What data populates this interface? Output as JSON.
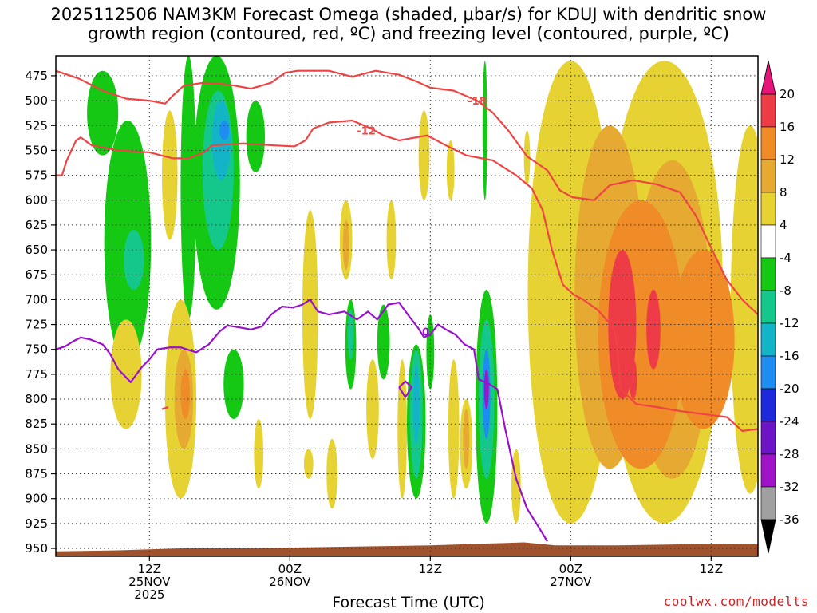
{
  "title_line1": "2025112506 NAM3KM Forecast Omega (shaded, μbar/s) for KDUJ with dendritic snow",
  "title_line2": "growth region (contoured, red, ºC) and freezing level (contoured, purple, ºC)",
  "xlabel": "Forecast Time (UTC)",
  "credit": "coolwx.com/modelts",
  "chart_data": {
    "type": "heatmap",
    "title": "2025112506 NAM3KM Forecast Omega (shaded, μbar/s) for KDUJ with dendritic snow growth region (contoured, red, ºC) and freezing level (contoured, purple, ºC)",
    "xlabel": "Forecast Time (UTC)",
    "ylabel": "",
    "x_range_hours": [
      0,
      45
    ],
    "y_range_hpa": [
      455,
      958
    ],
    "y_ticks": [
      475,
      500,
      525,
      550,
      575,
      600,
      625,
      650,
      675,
      700,
      725,
      750,
      775,
      800,
      825,
      850,
      875,
      900,
      925,
      950
    ],
    "x_ticks": [
      {
        "hour": 6,
        "line1": "12Z",
        "line2": "25NOV",
        "line3": "2025"
      },
      {
        "hour": 15,
        "line1": "00Z",
        "line2": "26NOV",
        "line3": ""
      },
      {
        "hour": 24,
        "line1": "12Z",
        "line2": "",
        "line3": ""
      },
      {
        "hour": 33,
        "line1": "00Z",
        "line2": "27NOV",
        "line3": ""
      },
      {
        "hour": 42,
        "line1": "12Z",
        "line2": "",
        "line3": ""
      }
    ],
    "colorbar": {
      "labels": [
        "20",
        "16",
        "12",
        "8",
        "4",
        "-4",
        "-8",
        "-12",
        "-16",
        "-20",
        "-24",
        "-28",
        "-32",
        "-36"
      ],
      "bins": [
        {
          "range": [
            16,
            20
          ],
          "color": "#ee3c46"
        },
        {
          "range": [
            12,
            16
          ],
          "color": "#f08c28"
        },
        {
          "range": [
            8,
            12
          ],
          "color": "#e6aa32"
        },
        {
          "range": [
            4,
            8
          ],
          "color": "#e6d232"
        },
        {
          "range": [
            -4,
            4
          ],
          "color": "#ffffff"
        },
        {
          "range": [
            -8,
            -4
          ],
          "color": "#14c814"
        },
        {
          "range": [
            -12,
            -8
          ],
          "color": "#14c88c"
        },
        {
          "range": [
            -16,
            -12
          ],
          "color": "#14b4c8"
        },
        {
          "range": [
            -20,
            -16
          ],
          "color": "#1e8cf0"
        },
        {
          "range": [
            -24,
            -20
          ],
          "color": "#1e28dc"
        },
        {
          "range": [
            -28,
            -24
          ],
          "color": "#6e14c8"
        },
        {
          "range": [
            -32,
            -28
          ],
          "color": "#a014c8"
        },
        {
          "range": [
            -36,
            -32
          ],
          "color": "#a0a0a0"
        }
      ],
      "top_overflow_color": "#e6147a",
      "bottom_overflow_color": "#000000"
    },
    "terrain_color": "#a0522d",
    "dgz_contour_color": "#ee4444",
    "freezing_contour_color": "#9911cc",
    "omega_regions": [
      {
        "value": -6,
        "hour": 3.0,
        "p_top": 470,
        "p_bot": 555,
        "w": 2.0
      },
      {
        "value": -6,
        "hour": 4.6,
        "p_top": 520,
        "p_bot": 765,
        "w": 3.0
      },
      {
        "value": -10,
        "hour": 5.0,
        "p_top": 630,
        "p_bot": 690,
        "w": 1.3
      },
      {
        "value": -6,
        "hour": 10.3,
        "p_top": 455,
        "p_bot": 710,
        "w": 3.0
      },
      {
        "value": -10,
        "hour": 10.4,
        "p_top": 490,
        "p_bot": 650,
        "w": 2.0
      },
      {
        "value": -14,
        "hour": 10.6,
        "p_top": 500,
        "p_bot": 580,
        "w": 1.2
      },
      {
        "value": -18,
        "hour": 10.8,
        "p_top": 520,
        "p_bot": 540,
        "w": 0.6
      },
      {
        "value": -6,
        "hour": 8.5,
        "p_top": 455,
        "p_bot": 720,
        "w": 1.0
      },
      {
        "value": -6,
        "hour": 12.8,
        "p_top": 500,
        "p_bot": 572,
        "w": 1.2
      },
      {
        "value": -6,
        "hour": 11.4,
        "p_top": 750,
        "p_bot": 820,
        "w": 1.3
      },
      {
        "value": -6,
        "hour": 18.9,
        "p_top": 700,
        "p_bot": 790,
        "w": 0.7
      },
      {
        "value": -10,
        "hour": 18.9,
        "p_top": 710,
        "p_bot": 760,
        "w": 0.4
      },
      {
        "value": -6,
        "hour": 21.0,
        "p_top": 705,
        "p_bot": 780,
        "w": 0.8
      },
      {
        "value": -6,
        "hour": 23.1,
        "p_top": 745,
        "p_bot": 900,
        "w": 1.2
      },
      {
        "value": -10,
        "hour": 23.1,
        "p_top": 750,
        "p_bot": 880,
        "w": 0.8
      },
      {
        "value": -16,
        "hour": 23.1,
        "p_top": 765,
        "p_bot": 845,
        "w": 0.4
      },
      {
        "value": -6,
        "hour": 24.0,
        "p_top": 715,
        "p_bot": 790,
        "w": 0.5
      },
      {
        "value": -6,
        "hour": 27.5,
        "p_top": 460,
        "p_bot": 600,
        "w": 0.3
      },
      {
        "value": -6,
        "hour": 27.6,
        "p_top": 690,
        "p_bot": 925,
        "w": 1.4
      },
      {
        "value": -10,
        "hour": 27.6,
        "p_top": 720,
        "p_bot": 880,
        "w": 1.0
      },
      {
        "value": -18,
        "hour": 27.6,
        "p_top": 750,
        "p_bot": 840,
        "w": 0.5
      },
      {
        "value": -30,
        "hour": 27.6,
        "p_top": 770,
        "p_bot": 810,
        "w": 0.2
      },
      {
        "value": 6,
        "hour": 33.0,
        "p_top": 460,
        "p_bot": 925,
        "w": 5.5
      },
      {
        "value": 6,
        "hour": 39.0,
        "p_top": 460,
        "p_bot": 925,
        "w": 7.5
      },
      {
        "value": 6,
        "hour": 44.5,
        "p_top": 525,
        "p_bot": 895,
        "w": 2.5
      },
      {
        "value": 10,
        "hour": 35.5,
        "p_top": 525,
        "p_bot": 870,
        "w": 4.5
      },
      {
        "value": 10,
        "hour": 39.5,
        "p_top": 560,
        "p_bot": 880,
        "w": 5.0
      },
      {
        "value": 14,
        "hour": 37.5,
        "p_top": 600,
        "p_bot": 870,
        "w": 5.5
      },
      {
        "value": 14,
        "hour": 41.5,
        "p_top": 650,
        "p_bot": 830,
        "w": 4.0
      },
      {
        "value": 18,
        "hour": 36.3,
        "p_top": 650,
        "p_bot": 800,
        "w": 1.8
      },
      {
        "value": 18,
        "hour": 38.3,
        "p_top": 690,
        "p_bot": 770,
        "w": 0.9
      },
      {
        "value": 18,
        "hour": 37.0,
        "p_top": 760,
        "p_bot": 800,
        "w": 0.5
      },
      {
        "value": 6,
        "hour": 4.5,
        "p_top": 720,
        "p_bot": 830,
        "w": 2.0
      },
      {
        "value": 6,
        "hour": 7.3,
        "p_top": 510,
        "p_bot": 640,
        "w": 1.0
      },
      {
        "value": 6,
        "hour": 8.0,
        "p_top": 700,
        "p_bot": 900,
        "w": 2.0
      },
      {
        "value": 10,
        "hour": 8.2,
        "p_top": 750,
        "p_bot": 850,
        "w": 1.2
      },
      {
        "value": 14,
        "hour": 8.3,
        "p_top": 770,
        "p_bot": 820,
        "w": 0.6
      },
      {
        "value": 6,
        "hour": 13.0,
        "p_top": 820,
        "p_bot": 890,
        "w": 0.6
      },
      {
        "value": 6,
        "hour": 16.3,
        "p_top": 610,
        "p_bot": 820,
        "w": 1.0
      },
      {
        "value": 6,
        "hour": 18.6,
        "p_top": 600,
        "p_bot": 680,
        "w": 0.8
      },
      {
        "value": 10,
        "hour": 18.6,
        "p_top": 620,
        "p_bot": 670,
        "w": 0.4
      },
      {
        "value": 6,
        "hour": 16.2,
        "p_top": 850,
        "p_bot": 880,
        "w": 0.6
      },
      {
        "value": 6,
        "hour": 17.7,
        "p_top": 840,
        "p_bot": 910,
        "w": 0.7
      },
      {
        "value": 6,
        "hour": 20.3,
        "p_top": 760,
        "p_bot": 860,
        "w": 0.8
      },
      {
        "value": 6,
        "hour": 21.5,
        "p_top": 600,
        "p_bot": 680,
        "w": 0.6
      },
      {
        "value": 6,
        "hour": 23.6,
        "p_top": 510,
        "p_bot": 600,
        "w": 0.7
      },
      {
        "value": 6,
        "hour": 22.2,
        "p_top": 760,
        "p_bot": 900,
        "w": 0.6
      },
      {
        "value": 6,
        "hour": 25.3,
        "p_top": 540,
        "p_bot": 600,
        "w": 0.5
      },
      {
        "value": 6,
        "hour": 25.5,
        "p_top": 760,
        "p_bot": 900,
        "w": 0.7
      },
      {
        "value": 6,
        "hour": 26.3,
        "p_top": 800,
        "p_bot": 890,
        "w": 0.8
      },
      {
        "value": 10,
        "hour": 26.3,
        "p_top": 810,
        "p_bot": 870,
        "w": 0.4
      },
      {
        "value": 6,
        "hour": 29.5,
        "p_top": 850,
        "p_bot": 925,
        "w": 0.6
      },
      {
        "value": 6,
        "hour": 30.2,
        "p_top": 530,
        "p_bot": 585,
        "w": 0.4
      }
    ],
    "contours": [
      {
        "label": "-18",
        "kind": "dgz",
        "points": [
          [
            0,
            470
          ],
          [
            1.5,
            478
          ],
          [
            3,
            490
          ],
          [
            4.5,
            498
          ],
          [
            6,
            500
          ],
          [
            7,
            503
          ],
          [
            7.5,
            495
          ],
          [
            8.2,
            485
          ],
          [
            9.5,
            482
          ],
          [
            10.5,
            483
          ],
          [
            11.5,
            485
          ],
          [
            12.5,
            488
          ],
          [
            13.8,
            482
          ],
          [
            14.7,
            472
          ],
          [
            15.5,
            470
          ],
          [
            17.5,
            470
          ],
          [
            19,
            476
          ],
          [
            20.5,
            470
          ],
          [
            22,
            474
          ],
          [
            23,
            480
          ],
          [
            24,
            487
          ],
          [
            25.5,
            490
          ],
          [
            27,
            500
          ],
          [
            28,
            512
          ],
          [
            29,
            530
          ],
          [
            30.2,
            556
          ],
          [
            31.5,
            570
          ],
          [
            32.3,
            590
          ],
          [
            33.1,
            597
          ],
          [
            34.5,
            600
          ],
          [
            35.5,
            585
          ],
          [
            37,
            580
          ],
          [
            38.5,
            584
          ],
          [
            40,
            592
          ],
          [
            41,
            615
          ],
          [
            42,
            648
          ],
          [
            43,
            680
          ],
          [
            44,
            700
          ],
          [
            45,
            715
          ]
        ],
        "label_at": [
          27.0,
          500
        ]
      },
      {
        "label": "-12",
        "kind": "dgz",
        "points": [
          [
            0,
            575
          ],
          [
            0.4,
            575
          ],
          [
            0.7,
            560
          ],
          [
            1.3,
            540
          ],
          [
            1.6,
            537
          ],
          [
            2.3,
            545
          ],
          [
            4,
            550
          ],
          [
            6,
            552
          ],
          [
            7.5,
            558
          ],
          [
            8.5,
            558
          ],
          [
            9.5,
            552
          ],
          [
            10,
            545
          ],
          [
            12,
            543
          ],
          [
            14,
            545
          ],
          [
            15.3,
            546
          ],
          [
            16,
            540
          ],
          [
            16.5,
            528
          ],
          [
            17.5,
            522
          ],
          [
            19,
            520
          ],
          [
            20.2,
            528
          ],
          [
            21,
            535
          ],
          [
            22,
            540
          ],
          [
            23.8,
            535
          ],
          [
            25,
            545
          ],
          [
            26.3,
            555
          ],
          [
            28,
            560
          ],
          [
            29.5,
            575
          ],
          [
            30.5,
            588
          ],
          [
            31.2,
            610
          ],
          [
            31.8,
            650
          ],
          [
            32.5,
            685
          ],
          [
            33.2,
            695
          ],
          [
            33.8,
            700
          ],
          [
            34.7,
            710
          ],
          [
            35,
            715
          ],
          [
            35.8,
            730
          ],
          [
            36,
            750
          ],
          [
            36.2,
            790
          ],
          [
            37.2,
            805
          ],
          [
            38.5,
            808
          ],
          [
            40,
            812
          ],
          [
            41.5,
            815
          ],
          [
            43,
            818
          ],
          [
            44,
            832
          ],
          [
            45,
            830
          ]
        ],
        "label_at": [
          19.9,
          530
        ]
      },
      {
        "label": "-12",
        "kind": "dgz",
        "points": [
          [
            6.8,
            810
          ],
          [
            7.2,
            808
          ]
        ],
        "label_at": null
      },
      {
        "label": "0",
        "kind": "freezing",
        "points": [
          [
            0,
            750
          ],
          [
            0.6,
            747
          ],
          [
            1.1,
            742
          ],
          [
            1.6,
            738
          ],
          [
            2.2,
            740
          ],
          [
            3,
            745
          ],
          [
            3.5,
            755
          ],
          [
            4,
            770
          ],
          [
            4.8,
            783
          ],
          [
            5.5,
            768
          ],
          [
            6,
            760
          ],
          [
            6.5,
            750
          ],
          [
            7.3,
            748
          ],
          [
            8,
            748
          ],
          [
            9,
            753
          ],
          [
            9.8,
            745
          ],
          [
            10.5,
            732
          ],
          [
            11,
            726
          ],
          [
            11.8,
            728
          ],
          [
            12.5,
            730
          ],
          [
            13.2,
            727
          ],
          [
            13.8,
            715
          ],
          [
            14.5,
            707
          ],
          [
            15.2,
            708
          ],
          [
            15.8,
            705
          ],
          [
            16.3,
            700
          ],
          [
            16.8,
            712
          ],
          [
            17.5,
            715
          ],
          [
            18.5,
            712
          ],
          [
            19.3,
            720
          ],
          [
            20,
            712
          ],
          [
            20.6,
            720
          ],
          [
            21.3,
            705
          ],
          [
            22,
            703
          ],
          [
            22.7,
            718
          ],
          [
            23.2,
            728
          ],
          [
            23.6,
            738
          ],
          [
            24,
            735
          ],
          [
            24.5,
            725
          ],
          [
            25,
            730
          ],
          [
            25.6,
            735
          ],
          [
            26.2,
            745
          ],
          [
            26.8,
            750
          ],
          [
            27.1,
            780
          ],
          [
            27.8,
            785
          ],
          [
            28.3,
            790
          ],
          [
            28.8,
            830
          ],
          [
            29.5,
            880
          ],
          [
            30.2,
            910
          ],
          [
            31,
            930
          ],
          [
            31.5,
            943
          ]
        ],
        "label_at": [
          23.7,
          732
        ]
      },
      {
        "label": "",
        "kind": "freezing_small",
        "points": [
          [
            22.0,
            788
          ],
          [
            22.4,
            782
          ],
          [
            22.8,
            788
          ],
          [
            22.4,
            798
          ],
          [
            22.0,
            788
          ]
        ],
        "label_at": null
      }
    ],
    "terrain_surface": [
      [
        0,
        953
      ],
      [
        4,
        952
      ],
      [
        8,
        950
      ],
      [
        12,
        950
      ],
      [
        16,
        949
      ],
      [
        20,
        948
      ],
      [
        24,
        947
      ],
      [
        28,
        945
      ],
      [
        30,
        944
      ],
      [
        32,
        947
      ],
      [
        36,
        947
      ],
      [
        40,
        946
      ],
      [
        45,
        946
      ]
    ]
  }
}
